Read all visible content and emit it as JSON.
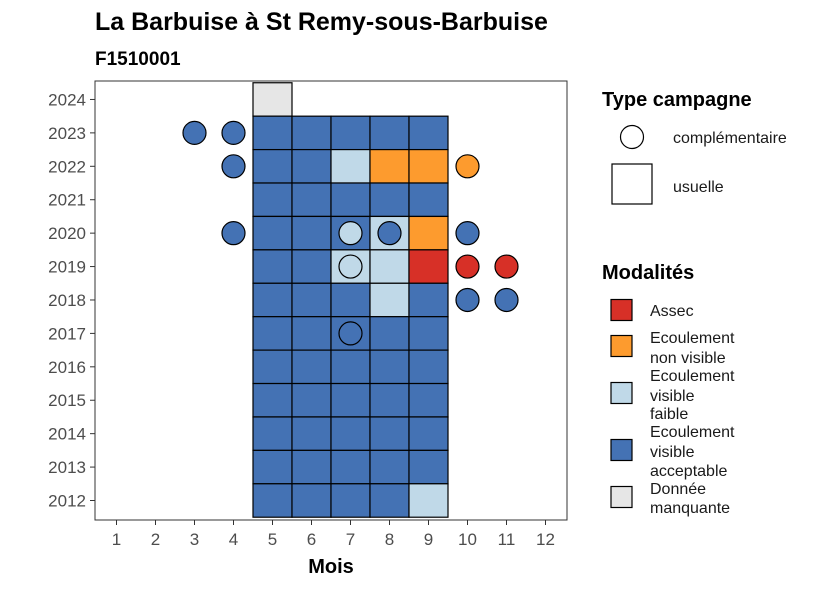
{
  "chart_data": {
    "type": "heatmap",
    "title": "La Barbuise à St Remy-sous-Barbuise",
    "subtitle": "F1510001",
    "xlabel": "Mois",
    "ylabel": "",
    "x_ticks": [
      1,
      2,
      3,
      4,
      5,
      6,
      7,
      8,
      9,
      10,
      11,
      12
    ],
    "y_ticks": [
      2012,
      2013,
      2014,
      2015,
      2016,
      2017,
      2018,
      2019,
      2020,
      2021,
      2022,
      2023,
      2024
    ],
    "xlim": [
      0.5,
      12.5
    ],
    "ylim": [
      2011.5,
      2024.5
    ],
    "colors": {
      "Assec": "#d73027",
      "Ecoulement non visible": "#fd9b2e",
      "Ecoulement visible faible": "#c0d9e8",
      "Ecoulement visible acceptable": "#4472b4",
      "Donnée manquante": "#e6e6e6"
    },
    "tiles": [
      {
        "year": 2024,
        "month": 5,
        "m": "Donnée manquante"
      },
      {
        "year": 2023,
        "month": 5,
        "m": "Ecoulement visible acceptable"
      },
      {
        "year": 2023,
        "month": 6,
        "m": "Ecoulement visible acceptable"
      },
      {
        "year": 2023,
        "month": 7,
        "m": "Ecoulement visible acceptable"
      },
      {
        "year": 2023,
        "month": 8,
        "m": "Ecoulement visible acceptable"
      },
      {
        "year": 2023,
        "month": 9,
        "m": "Ecoulement visible acceptable"
      },
      {
        "year": 2022,
        "month": 5,
        "m": "Ecoulement visible acceptable"
      },
      {
        "year": 2022,
        "month": 6,
        "m": "Ecoulement visible acceptable"
      },
      {
        "year": 2022,
        "month": 7,
        "m": "Ecoulement visible faible"
      },
      {
        "year": 2022,
        "month": 8,
        "m": "Ecoulement non visible"
      },
      {
        "year": 2022,
        "month": 9,
        "m": "Ecoulement non visible"
      },
      {
        "year": 2021,
        "month": 5,
        "m": "Ecoulement visible acceptable"
      },
      {
        "year": 2021,
        "month": 6,
        "m": "Ecoulement visible acceptable"
      },
      {
        "year": 2021,
        "month": 7,
        "m": "Ecoulement visible acceptable"
      },
      {
        "year": 2021,
        "month": 8,
        "m": "Ecoulement visible acceptable"
      },
      {
        "year": 2021,
        "month": 9,
        "m": "Ecoulement visible acceptable"
      },
      {
        "year": 2020,
        "month": 5,
        "m": "Ecoulement visible acceptable"
      },
      {
        "year": 2020,
        "month": 6,
        "m": "Ecoulement visible acceptable"
      },
      {
        "year": 2020,
        "month": 7,
        "m": "Ecoulement visible acceptable"
      },
      {
        "year": 2020,
        "month": 8,
        "m": "Ecoulement visible faible"
      },
      {
        "year": 2020,
        "month": 9,
        "m": "Ecoulement non visible"
      },
      {
        "year": 2019,
        "month": 5,
        "m": "Ecoulement visible acceptable"
      },
      {
        "year": 2019,
        "month": 6,
        "m": "Ecoulement visible acceptable"
      },
      {
        "year": 2019,
        "month": 7,
        "m": "Ecoulement visible faible"
      },
      {
        "year": 2019,
        "month": 8,
        "m": "Ecoulement visible faible"
      },
      {
        "year": 2019,
        "month": 9,
        "m": "Assec"
      },
      {
        "year": 2018,
        "month": 5,
        "m": "Ecoulement visible acceptable"
      },
      {
        "year": 2018,
        "month": 6,
        "m": "Ecoulement visible acceptable"
      },
      {
        "year": 2018,
        "month": 7,
        "m": "Ecoulement visible acceptable"
      },
      {
        "year": 2018,
        "month": 8,
        "m": "Ecoulement visible faible"
      },
      {
        "year": 2018,
        "month": 9,
        "m": "Ecoulement visible acceptable"
      },
      {
        "year": 2017,
        "month": 5,
        "m": "Ecoulement visible acceptable"
      },
      {
        "year": 2017,
        "month": 6,
        "m": "Ecoulement visible acceptable"
      },
      {
        "year": 2017,
        "month": 7,
        "m": "Ecoulement visible acceptable"
      },
      {
        "year": 2017,
        "month": 8,
        "m": "Ecoulement visible acceptable"
      },
      {
        "year": 2017,
        "month": 9,
        "m": "Ecoulement visible acceptable"
      },
      {
        "year": 2016,
        "month": 5,
        "m": "Ecoulement visible acceptable"
      },
      {
        "year": 2016,
        "month": 6,
        "m": "Ecoulement visible acceptable"
      },
      {
        "year": 2016,
        "month": 7,
        "m": "Ecoulement visible acceptable"
      },
      {
        "year": 2016,
        "month": 8,
        "m": "Ecoulement visible acceptable"
      },
      {
        "year": 2016,
        "month": 9,
        "m": "Ecoulement visible acceptable"
      },
      {
        "year": 2015,
        "month": 5,
        "m": "Ecoulement visible acceptable"
      },
      {
        "year": 2015,
        "month": 6,
        "m": "Ecoulement visible acceptable"
      },
      {
        "year": 2015,
        "month": 7,
        "m": "Ecoulement visible acceptable"
      },
      {
        "year": 2015,
        "month": 8,
        "m": "Ecoulement visible acceptable"
      },
      {
        "year": 2015,
        "month": 9,
        "m": "Ecoulement visible acceptable"
      },
      {
        "year": 2014,
        "month": 5,
        "m": "Ecoulement visible acceptable"
      },
      {
        "year": 2014,
        "month": 6,
        "m": "Ecoulement visible acceptable"
      },
      {
        "year": 2014,
        "month": 7,
        "m": "Ecoulement visible acceptable"
      },
      {
        "year": 2014,
        "month": 8,
        "m": "Ecoulement visible acceptable"
      },
      {
        "year": 2014,
        "month": 9,
        "m": "Ecoulement visible acceptable"
      },
      {
        "year": 2013,
        "month": 5,
        "m": "Ecoulement visible acceptable"
      },
      {
        "year": 2013,
        "month": 6,
        "m": "Ecoulement visible acceptable"
      },
      {
        "year": 2013,
        "month": 7,
        "m": "Ecoulement visible acceptable"
      },
      {
        "year": 2013,
        "month": 8,
        "m": "Ecoulement visible acceptable"
      },
      {
        "year": 2013,
        "month": 9,
        "m": "Ecoulement visible acceptable"
      },
      {
        "year": 2012,
        "month": 5,
        "m": "Ecoulement visible acceptable"
      },
      {
        "year": 2012,
        "month": 6,
        "m": "Ecoulement visible acceptable"
      },
      {
        "year": 2012,
        "month": 7,
        "m": "Ecoulement visible acceptable"
      },
      {
        "year": 2012,
        "month": 8,
        "m": "Ecoulement visible acceptable"
      },
      {
        "year": 2012,
        "month": 9,
        "m": "Ecoulement visible faible"
      }
    ],
    "points": [
      {
        "year": 2023,
        "month": 3,
        "m": "Ecoulement visible acceptable"
      },
      {
        "year": 2023,
        "month": 4,
        "m": "Ecoulement visible acceptable"
      },
      {
        "year": 2022,
        "month": 4,
        "m": "Ecoulement visible acceptable"
      },
      {
        "year": 2022,
        "month": 10,
        "m": "Ecoulement non visible"
      },
      {
        "year": 2020,
        "month": 4,
        "m": "Ecoulement visible acceptable"
      },
      {
        "year": 2020,
        "month": 7,
        "m": "Ecoulement visible faible"
      },
      {
        "year": 2020,
        "month": 8,
        "m": "Ecoulement visible acceptable"
      },
      {
        "year": 2020,
        "month": 10,
        "m": "Ecoulement visible acceptable"
      },
      {
        "year": 2019,
        "month": 7,
        "m": "Ecoulement visible faible"
      },
      {
        "year": 2019,
        "month": 10,
        "m": "Assec"
      },
      {
        "year": 2019,
        "month": 11,
        "m": "Assec"
      },
      {
        "year": 2018,
        "month": 10,
        "m": "Ecoulement visible acceptable"
      },
      {
        "year": 2018,
        "month": 11,
        "m": "Ecoulement visible acceptable"
      },
      {
        "year": 2017,
        "month": 7,
        "m": "Ecoulement visible acceptable"
      }
    ],
    "legend_type": {
      "title": "Type campagne",
      "items": [
        {
          "label": "complémentaire",
          "shape": "circle"
        },
        {
          "label": "usuelle",
          "shape": "square"
        }
      ]
    },
    "legend_modalites": {
      "title": "Modalités",
      "items": [
        {
          "key": "Assec",
          "lines": [
            "Assec"
          ]
        },
        {
          "key": "Ecoulement non visible",
          "lines": [
            "Ecoulement",
            "non visible"
          ]
        },
        {
          "key": "Ecoulement visible faible",
          "lines": [
            "Ecoulement",
            "visible",
            "faible"
          ]
        },
        {
          "key": "Ecoulement visible acceptable",
          "lines": [
            "Ecoulement",
            "visible",
            "acceptable"
          ]
        },
        {
          "key": "Donnée manquante",
          "lines": [
            "Donnée",
            "manquante"
          ]
        }
      ]
    },
    "legend_placement": "right",
    "grid": false
  }
}
